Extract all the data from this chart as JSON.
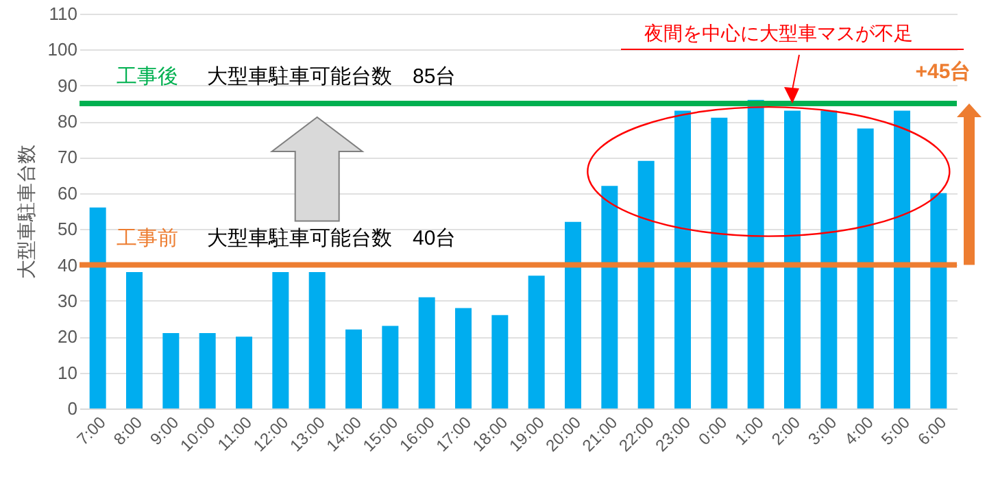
{
  "chart_data": {
    "type": "bar",
    "ylabel": "大型車駐車台数",
    "categories": [
      "7:00",
      "8:00",
      "9:00",
      "10:00",
      "11:00",
      "12:00",
      "13:00",
      "14:00",
      "15:00",
      "16:00",
      "17:00",
      "18:00",
      "19:00",
      "20:00",
      "21:00",
      "22:00",
      "23:00",
      "0:00",
      "1:00",
      "2:00",
      "3:00",
      "4:00",
      "5:00",
      "6:00"
    ],
    "series": [
      {
        "color": "#00adef",
        "values": [
          56,
          38,
          21,
          21,
          20,
          38,
          38,
          22,
          23,
          31,
          28,
          26,
          37,
          52,
          62,
          69,
          83,
          81,
          86,
          83,
          83,
          78,
          83,
          60
        ]
      }
    ],
    "ylim": [
      0,
      110
    ],
    "yticks": [
      0,
      10,
      20,
      30,
      40,
      50,
      60,
      70,
      80,
      90,
      100,
      110
    ],
    "grid": "y",
    "ref_lines": [
      {
        "axis": "y",
        "value": 85,
        "label": "工事後",
        "color": "#00b050"
      },
      {
        "axis": "y",
        "value": 40,
        "label": "工事前",
        "color": "#ed7d31"
      }
    ],
    "annotations": [
      "大型車駐車可能台数　85台",
      "大型車駐車可能台数　40台",
      "夜間を中心に大型車マスが不足",
      "+45台"
    ]
  }
}
